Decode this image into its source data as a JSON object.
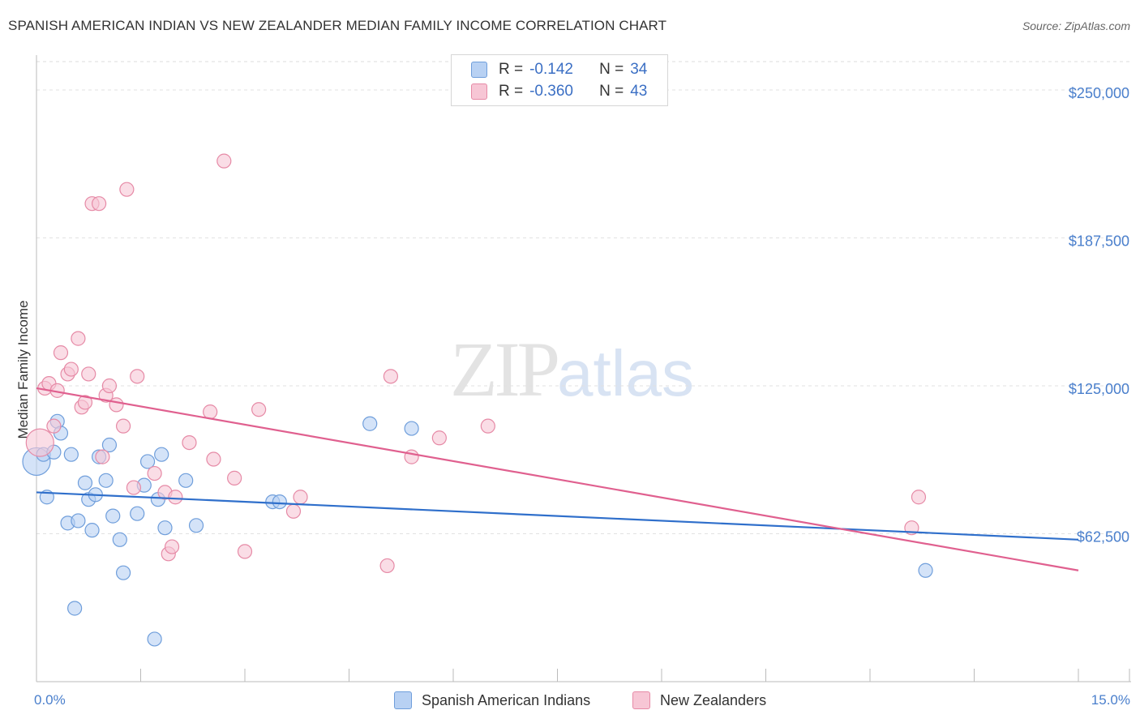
{
  "title": "SPANISH AMERICAN INDIAN VS NEW ZEALANDER MEDIAN FAMILY INCOME CORRELATION CHART",
  "source": "Source: ZipAtlas.com",
  "watermark": {
    "zip": "ZIP",
    "atlas": "atlas"
  },
  "legend": {
    "rows": [
      {
        "r_label": "R =",
        "r_value": "-0.142",
        "n_label": "N =",
        "n_value": "34"
      },
      {
        "r_label": "R =",
        "r_value": "-0.360",
        "n_label": "N =",
        "n_value": "43"
      }
    ]
  },
  "bottom_legend": [
    "Spanish American Indians",
    "New Zealanders"
  ],
  "colors": {
    "blue_fill": "#b8d1f3",
    "blue_stroke": "#6f9edb",
    "blue_line": "#2f6fcb",
    "pink_fill": "#f7c6d5",
    "pink_stroke": "#e68aa6",
    "pink_line": "#e0608f"
  },
  "chart_data": {
    "type": "scatter",
    "title": "SPANISH AMERICAN INDIAN VS NEW ZEALANDER MEDIAN FAMILY INCOME CORRELATION CHART",
    "xlabel": "",
    "ylabel": "Median Family Income",
    "xlim": [
      0,
      15
    ],
    "ylim": [
      0,
      262000
    ],
    "x_tick_labels": [
      "0.0%",
      "15.0%"
    ],
    "y_ticks": [
      62500,
      125000,
      187500,
      250000
    ],
    "y_tick_labels": [
      "$62,500",
      "$125,000",
      "$187,500",
      "$250,000"
    ],
    "series": [
      {
        "name": "Spanish American Indians",
        "r": -0.142,
        "n": 34,
        "trend": {
          "x0": 0,
          "y0": 80000,
          "x1": 15,
          "y1": 60000
        },
        "points": [
          [
            0.0,
            93000
          ],
          [
            0.1,
            96000
          ],
          [
            0.15,
            78000
          ],
          [
            0.25,
            97000
          ],
          [
            0.3,
            110000
          ],
          [
            0.35,
            105000
          ],
          [
            0.45,
            67000
          ],
          [
            0.5,
            96000
          ],
          [
            0.55,
            31000
          ],
          [
            0.6,
            68000
          ],
          [
            0.7,
            84000
          ],
          [
            0.75,
            77000
          ],
          [
            0.8,
            64000
          ],
          [
            0.85,
            79000
          ],
          [
            0.9,
            95000
          ],
          [
            1.0,
            85000
          ],
          [
            1.05,
            100000
          ],
          [
            1.1,
            70000
          ],
          [
            1.2,
            60000
          ],
          [
            1.25,
            46000
          ],
          [
            1.45,
            71000
          ],
          [
            1.55,
            83000
          ],
          [
            1.6,
            93000
          ],
          [
            1.7,
            18000
          ],
          [
            1.75,
            77000
          ],
          [
            1.8,
            96000
          ],
          [
            1.85,
            65000
          ],
          [
            2.15,
            85000
          ],
          [
            2.3,
            66000
          ],
          [
            3.4,
            76000
          ],
          [
            3.5,
            76000
          ],
          [
            4.8,
            109000
          ],
          [
            5.4,
            107000
          ],
          [
            12.8,
            47000
          ]
        ]
      },
      {
        "name": "New Zealanders",
        "r": -0.36,
        "n": 43,
        "trend": {
          "x0": 0,
          "y0": 124000,
          "x1": 15,
          "y1": 47000
        },
        "points": [
          [
            0.05,
            101000
          ],
          [
            0.12,
            124000
          ],
          [
            0.18,
            126000
          ],
          [
            0.25,
            108000
          ],
          [
            0.3,
            123000
          ],
          [
            0.35,
            139000
          ],
          [
            0.45,
            130000
          ],
          [
            0.5,
            132000
          ],
          [
            0.6,
            145000
          ],
          [
            0.65,
            116000
          ],
          [
            0.7,
            118000
          ],
          [
            0.75,
            130000
          ],
          [
            0.8,
            202000
          ],
          [
            0.9,
            202000
          ],
          [
            0.95,
            95000
          ],
          [
            1.0,
            121000
          ],
          [
            1.05,
            125000
          ],
          [
            1.15,
            117000
          ],
          [
            1.25,
            108000
          ],
          [
            1.3,
            208000
          ],
          [
            1.4,
            82000
          ],
          [
            1.45,
            129000
          ],
          [
            1.7,
            88000
          ],
          [
            1.85,
            80000
          ],
          [
            1.9,
            54000
          ],
          [
            1.95,
            57000
          ],
          [
            2.0,
            78000
          ],
          [
            2.2,
            101000
          ],
          [
            2.5,
            114000
          ],
          [
            2.55,
            94000
          ],
          [
            2.7,
            220000
          ],
          [
            2.85,
            86000
          ],
          [
            3.0,
            55000
          ],
          [
            3.2,
            115000
          ],
          [
            3.7,
            72000
          ],
          [
            3.8,
            78000
          ],
          [
            5.05,
            49000
          ],
          [
            5.1,
            129000
          ],
          [
            5.4,
            95000
          ],
          [
            5.8,
            103000
          ],
          [
            6.5,
            108000
          ],
          [
            12.7,
            78000
          ],
          [
            12.6,
            65000
          ]
        ]
      }
    ]
  }
}
